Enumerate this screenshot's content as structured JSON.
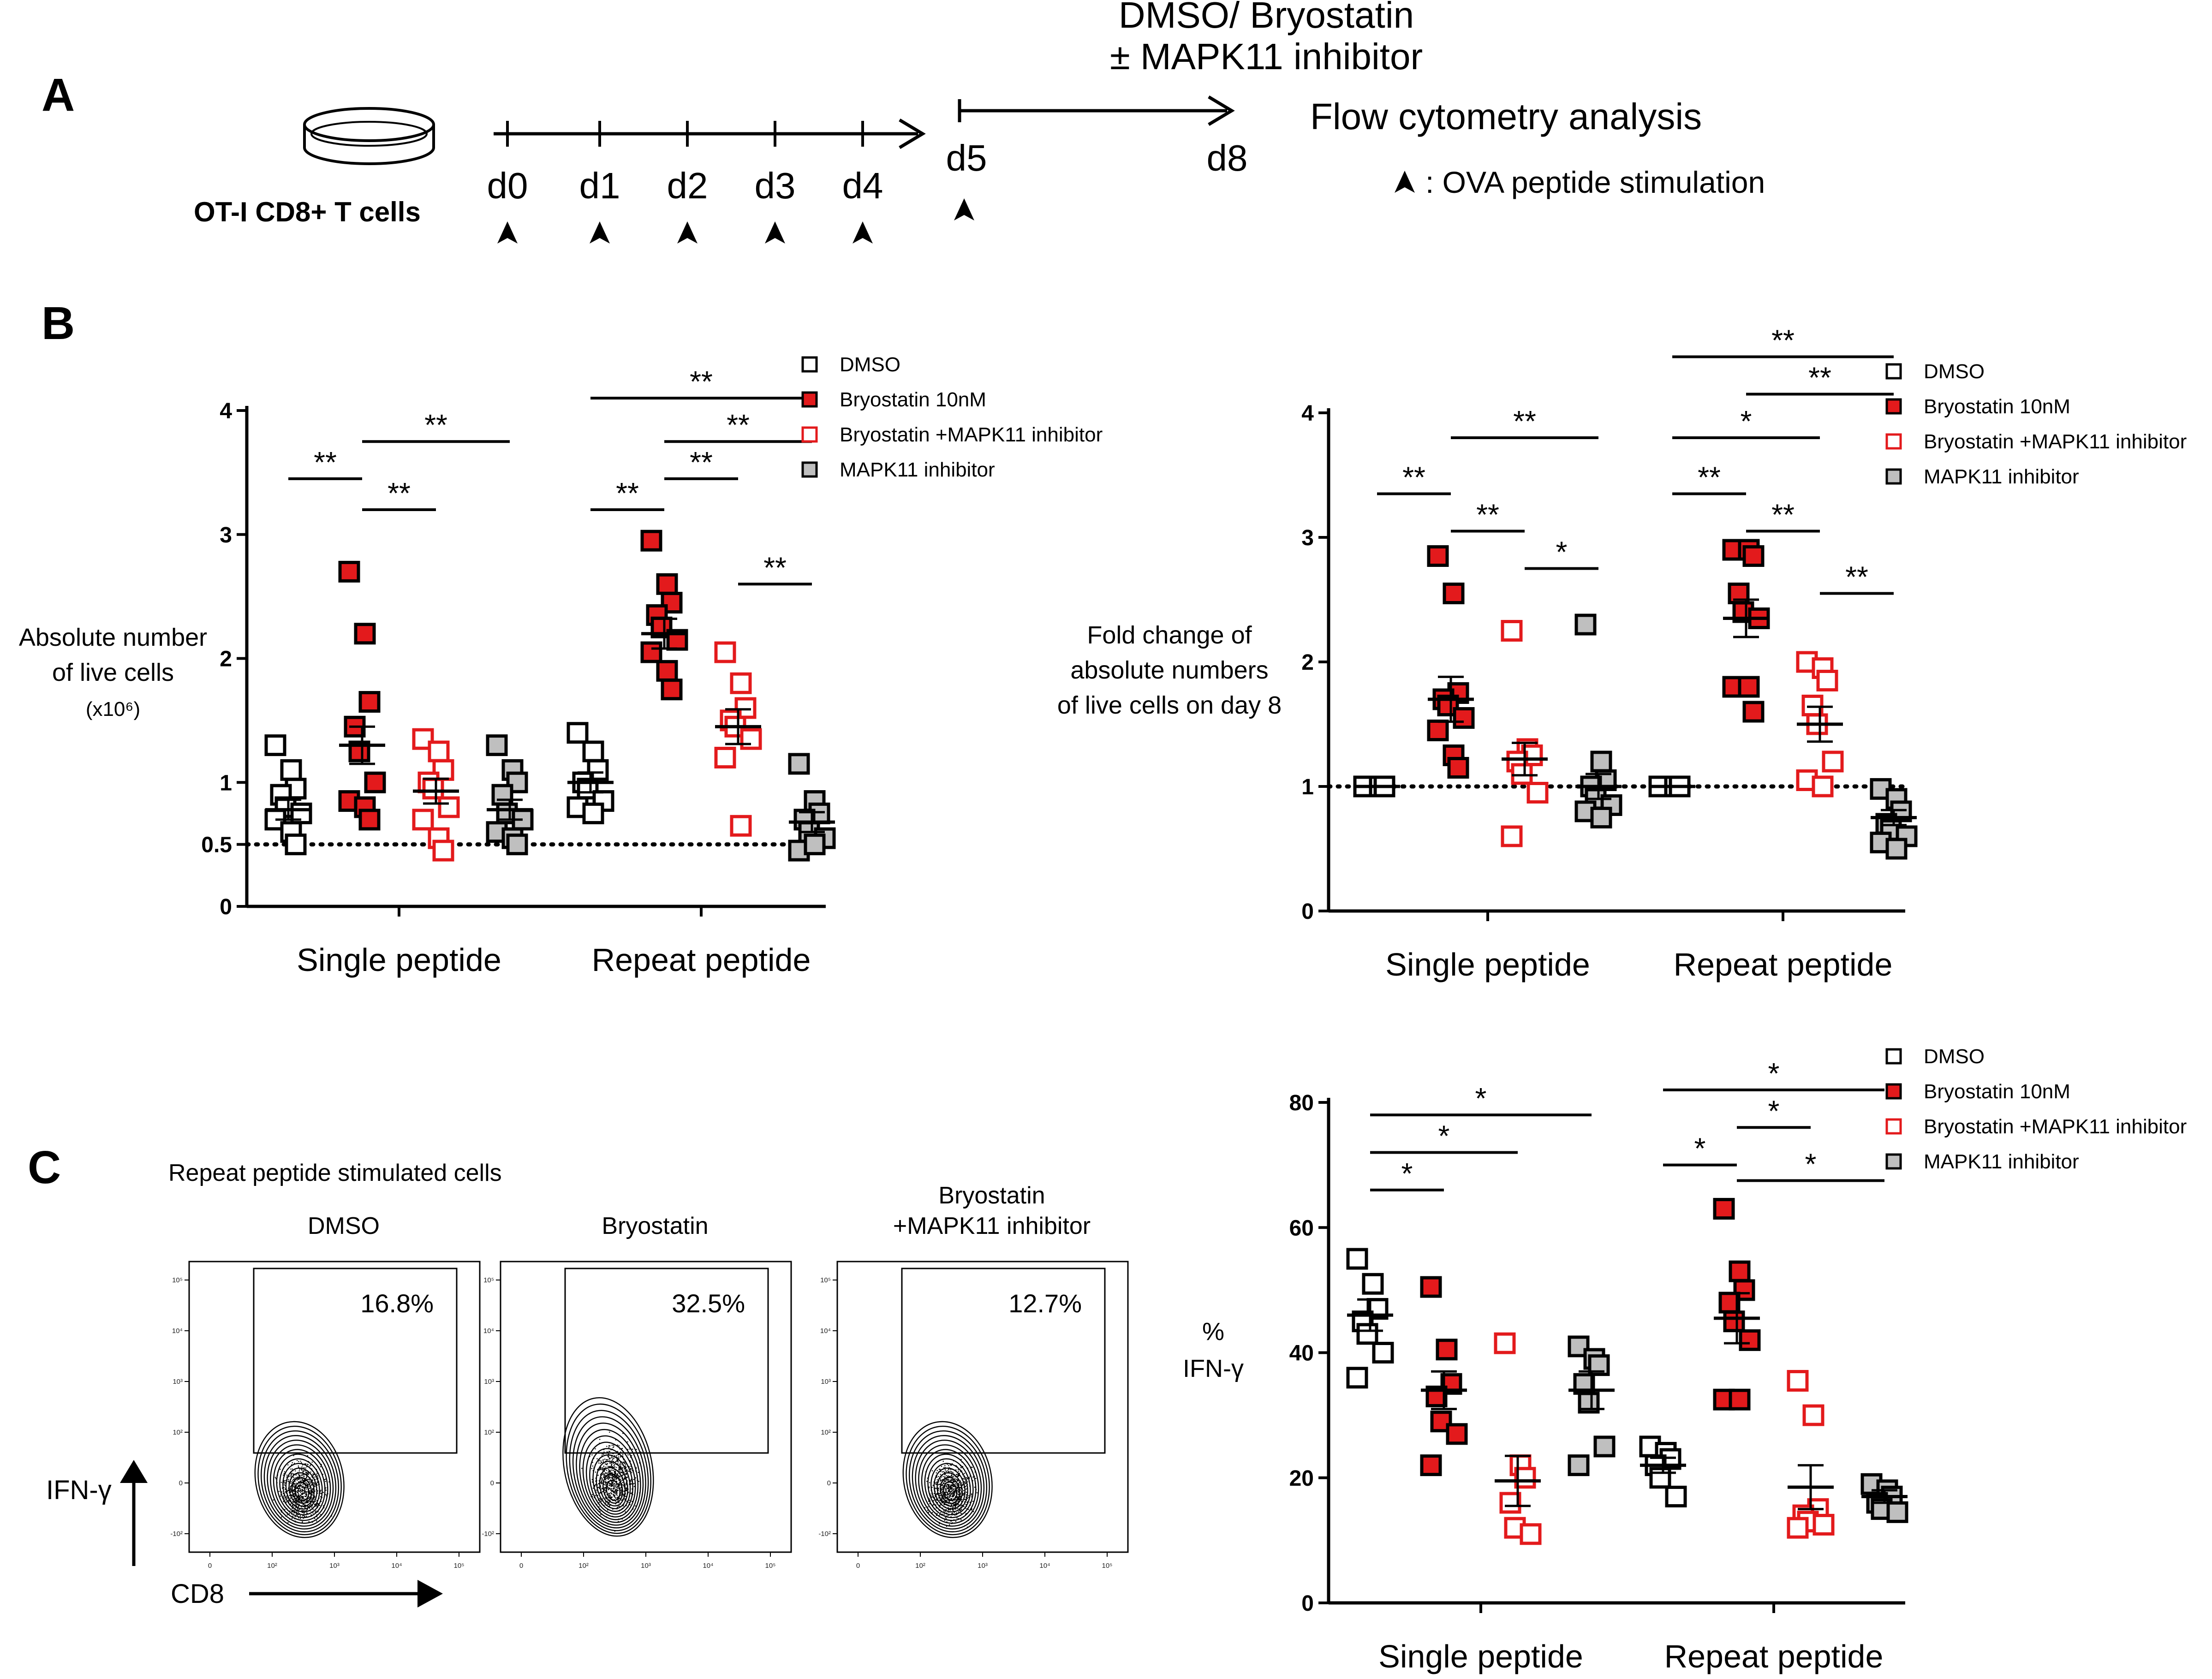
{
  "panel_labels": {
    "a": "A",
    "b": "B",
    "c": "C"
  },
  "panel_a": {
    "treatment_line1": "DMSO/ Bryostatin",
    "treatment_line2": "± MAPK11 inhibitor",
    "analysis": "Flow cytometry analysis",
    "cells": "OT-I CD8+ T cells",
    "days": [
      "d0",
      "d1",
      "d2",
      "d3",
      "d4"
    ],
    "d5": "d5",
    "d8": "d8",
    "legend": ": OVA peptide stimulation"
  },
  "legend": {
    "items": [
      "DMSO",
      "Bryostatin 10nM",
      "Bryostatin +MAPK11 inhibitor",
      "MAPK11 inhibitor"
    ]
  },
  "colors": {
    "red": "#e31a1c",
    "gray": "#bfbfbf",
    "black": "#000000"
  },
  "chart_data": [
    {
      "id": "b1",
      "type": "scatter",
      "title": "",
      "ylabel_lines": [
        "Absolute number",
        "of live cells"
      ],
      "ylabel_unit": "(x10⁶)",
      "categories": [
        "Single peptide",
        "Repeat peptide"
      ],
      "yticks": [
        "0",
        "0.5",
        "1",
        "2",
        "3",
        "4"
      ],
      "ylim": [
        0,
        4
      ],
      "reference_line": 0.5,
      "series": [
        {
          "name": "DMSO",
          "single": [
            1.3,
            1.1,
            0.95,
            0.9,
            0.8,
            0.75,
            0.7,
            0.6,
            0.5
          ],
          "repeat": [
            1.4,
            1.25,
            1.1,
            1.0,
            0.95,
            0.85,
            0.8,
            0.75
          ],
          "mean": [
            0.78,
            1.0
          ],
          "sem": [
            0.08,
            0.08
          ]
        },
        {
          "name": "Bryostatin 10nM",
          "single": [
            2.7,
            2.2,
            1.65,
            1.45,
            1.25,
            1.0,
            0.85,
            0.8,
            0.7
          ],
          "repeat": [
            2.95,
            2.6,
            2.45,
            2.35,
            2.25,
            2.15,
            2.05,
            1.9,
            1.75
          ],
          "mean": [
            1.3,
            2.2
          ],
          "sem": [
            0.15,
            0.12
          ]
        },
        {
          "name": "Bryostatin +MAPK11 inhibitor",
          "single": [
            1.35,
            1.25,
            1.1,
            1.0,
            0.95,
            0.8,
            0.7,
            0.55,
            0.45
          ],
          "repeat": [
            2.05,
            1.8,
            1.6,
            1.5,
            1.45,
            1.35,
            1.2,
            0.65
          ],
          "mean": [
            0.93,
            1.45
          ],
          "sem": [
            0.1,
            0.14
          ]
        },
        {
          "name": "MAPK11 inhibitor",
          "single": [
            1.3,
            1.1,
            1.0,
            0.9,
            0.75,
            0.7,
            0.6,
            0.55,
            0.5
          ],
          "repeat": [
            1.15,
            0.85,
            0.75,
            0.7,
            0.6,
            0.55,
            0.45,
            0.5
          ],
          "mean": [
            0.78,
            0.68
          ],
          "sem": [
            0.08,
            0.08
          ]
        }
      ],
      "brackets": [
        {
          "from": [
            0,
            0
          ],
          "to": [
            0,
            1
          ],
          "level": 3.45,
          "label": "**"
        },
        {
          "from": [
            0,
            1
          ],
          "to": [
            0,
            2
          ],
          "level": 3.2,
          "label": "**"
        },
        {
          "from": [
            0,
            1
          ],
          "to": [
            0,
            3
          ],
          "level": 3.75,
          "label": "**"
        },
        {
          "from": [
            1,
            0
          ],
          "to": [
            1,
            1
          ],
          "level": 3.2,
          "label": "**"
        },
        {
          "from": [
            1,
            1
          ],
          "to": [
            1,
            2
          ],
          "level": 3.45,
          "label": "**"
        },
        {
          "from": [
            1,
            1
          ],
          "to": [
            1,
            3
          ],
          "level": 3.75,
          "label": "**"
        },
        {
          "from": [
            1,
            0
          ],
          "to": [
            1,
            3
          ],
          "level": 4.1,
          "label": "**"
        },
        {
          "from": [
            1,
            2
          ],
          "to": [
            1,
            3
          ],
          "level": 2.6,
          "label": "**"
        }
      ]
    },
    {
      "id": "b2",
      "type": "scatter",
      "title": "",
      "ylabel_lines": [
        "Fold change of",
        "absolute numbers",
        "of live cells on day 8"
      ],
      "categories": [
        "Single peptide",
        "Repeat peptide"
      ],
      "yticks": [
        "0",
        "1",
        "2",
        "3",
        "4"
      ],
      "ylim": [
        0,
        4
      ],
      "reference_line": 1,
      "series": [
        {
          "name": "DMSO",
          "single": [
            1.0,
            1.0,
            1.0
          ],
          "repeat": [
            1.0,
            1.0,
            1.0
          ],
          "mean": [
            1.0,
            1.0
          ],
          "sem": [
            0,
            0
          ]
        },
        {
          "name": "Bryostatin 10nM",
          "single": [
            2.85,
            2.55,
            1.75,
            1.7,
            1.65,
            1.55,
            1.45,
            1.25,
            1.15
          ],
          "repeat": [
            2.9,
            2.9,
            2.85,
            2.55,
            2.4,
            2.35,
            1.8,
            1.8,
            1.6
          ],
          "mean": [
            1.7,
            2.35
          ],
          "sem": [
            0.18,
            0.15
          ]
        },
        {
          "name": "Bryostatin +MAPK11 inhibitor",
          "single": [
            2.25,
            1.3,
            1.25,
            1.2,
            1.1,
            0.95,
            0.6
          ],
          "repeat": [
            2.0,
            1.95,
            1.85,
            1.65,
            1.5,
            1.2,
            1.05,
            1.0
          ],
          "mean": [
            1.22,
            1.5
          ],
          "sem": [
            0.13,
            0.14
          ]
        },
        {
          "name": "MAPK11 inhibitor",
          "single": [
            2.3,
            1.2,
            1.05,
            1.0,
            0.9,
            0.85,
            0.8,
            0.75
          ],
          "repeat": [
            0.98,
            0.9,
            0.8,
            0.7,
            0.65,
            0.6,
            0.55,
            0.5
          ],
          "mean": [
            1.0,
            0.75
          ],
          "sem": [
            0.1,
            0.06
          ]
        }
      ],
      "brackets": [
        {
          "from": [
            0,
            0
          ],
          "to": [
            0,
            1
          ],
          "level": 3.35,
          "label": "**"
        },
        {
          "from": [
            0,
            1
          ],
          "to": [
            0,
            2
          ],
          "level": 3.05,
          "label": "**"
        },
        {
          "from": [
            0,
            1
          ],
          "to": [
            0,
            3
          ],
          "level": 3.8,
          "label": "**"
        },
        {
          "from": [
            0,
            2
          ],
          "to": [
            0,
            3
          ],
          "level": 2.75,
          "label": "*"
        },
        {
          "from": [
            1,
            0
          ],
          "to": [
            1,
            1
          ],
          "level": 3.35,
          "label": "**"
        },
        {
          "from": [
            1,
            1
          ],
          "to": [
            1,
            2
          ],
          "level": 3.05,
          "label": "**"
        },
        {
          "from": [
            1,
            0
          ],
          "to": [
            1,
            2
          ],
          "level": 3.8,
          "label": "*"
        },
        {
          "from": [
            1,
            1
          ],
          "to": [
            1,
            3
          ],
          "level": 4.15,
          "label": "**"
        },
        {
          "from": [
            1,
            0
          ],
          "to": [
            1,
            3
          ],
          "level": 4.45,
          "label": "**"
        },
        {
          "from": [
            1,
            2
          ],
          "to": [
            1,
            3
          ],
          "level": 2.55,
          "label": "**"
        }
      ]
    },
    {
      "id": "c2",
      "type": "scatter",
      "title": "",
      "ylabel_lines": [
        "%",
        "IFN-γ"
      ],
      "categories": [
        "Single peptide",
        "Repeat peptide"
      ],
      "yticks": [
        "0",
        "20",
        "40",
        "60",
        "80"
      ],
      "ylim": [
        0,
        80
      ],
      "series": [
        {
          "name": "DMSO",
          "single": [
            55,
            51,
            47,
            45,
            43,
            40,
            36
          ],
          "repeat": [
            25,
            24,
            23,
            22,
            20,
            17
          ],
          "mean": [
            46,
            22
          ],
          "sem": [
            2.5,
            1.2
          ]
        },
        {
          "name": "Bryostatin 10nM",
          "single": [
            50.5,
            40.5,
            35,
            33,
            29,
            27,
            22
          ],
          "repeat": [
            63,
            53,
            50,
            48,
            45,
            42,
            32.5,
            32.5
          ],
          "mean": [
            34,
            45.5
          ],
          "sem": [
            3,
            4
          ]
        },
        {
          "name": "Bryostatin +MAPK11 inhibitor",
          "single": [
            41.5,
            22,
            20,
            16,
            12,
            11
          ],
          "repeat": [
            35.5,
            30,
            15,
            14,
            13,
            12.5,
            12
          ],
          "mean": [
            19.5,
            18.5
          ],
          "sem": [
            4,
            3.5
          ]
        },
        {
          "name": "MAPK11 inhibitor",
          "single": [
            41,
            39,
            38,
            35,
            32,
            25,
            22
          ],
          "repeat": [
            19,
            18,
            17,
            16,
            15,
            14.5
          ],
          "mean": [
            34,
            17
          ],
          "sem": [
            3,
            1
          ]
        }
      ],
      "brackets": [
        {
          "from": [
            0,
            0
          ],
          "to": [
            0,
            1
          ],
          "level": 66,
          "label": "*"
        },
        {
          "from": [
            0,
            0
          ],
          "to": [
            0,
            2
          ],
          "level": 72,
          "label": "*"
        },
        {
          "from": [
            0,
            0
          ],
          "to": [
            0,
            3
          ],
          "level": 78,
          "label": "*"
        },
        {
          "from": [
            1,
            0
          ],
          "to": [
            1,
            1
          ],
          "level": 70,
          "label": "*"
        },
        {
          "from": [
            1,
            1
          ],
          "to": [
            1,
            2
          ],
          "level": 76,
          "label": "*"
        },
        {
          "from": [
            1,
            1
          ],
          "to": [
            1,
            3
          ],
          "level": 67.5,
          "label": "*"
        },
        {
          "from": [
            1,
            0
          ],
          "to": [
            1,
            3
          ],
          "level": 82,
          "label": "*"
        }
      ]
    }
  ],
  "panel_c": {
    "heading": "Repeat peptide stimulated cells",
    "axis_x": "CD8",
    "axis_y": "IFN-γ",
    "fc_ticks": [
      "0",
      "10²",
      "10³",
      "10⁴",
      "10⁵"
    ],
    "fc_yticks": [
      "10⁵",
      "10⁴",
      "10³",
      "10²",
      "0",
      "-10²"
    ],
    "plots": [
      {
        "title_lines": [
          "DMSO"
        ],
        "percent": "16.8%"
      },
      {
        "title_lines": [
          "Bryostatin"
        ],
        "percent": "32.5%"
      },
      {
        "title_lines": [
          "Bryostatin",
          "+MAPK11 inhibitor"
        ],
        "percent": "12.7%"
      }
    ]
  }
}
